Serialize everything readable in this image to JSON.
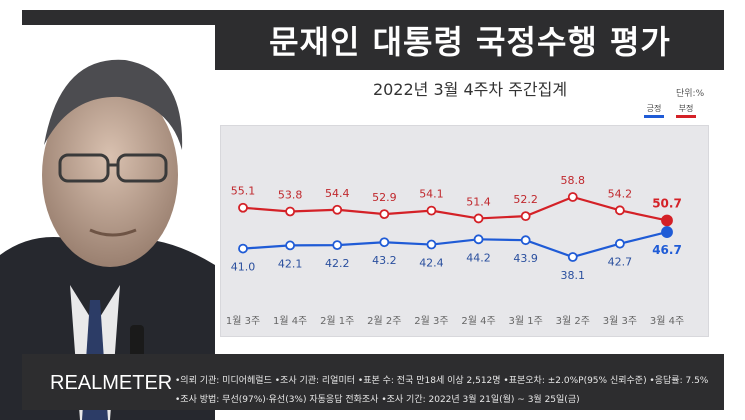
{
  "header": {
    "title": "문재인 대통령 국정수행 평가",
    "subtitle": "2022년 3월 4주차 주간집계",
    "unit": "단위:%"
  },
  "legend": {
    "positive_label": "긍정",
    "negative_label": "부정"
  },
  "footer": {
    "logo": "REALMETER",
    "line1": "•의뢰 기관: 미디어헤럴드 •조사 기관: 리얼미터 •표본 수: 전국 만18세 이상 2,512명 •표본오차: ±2.0%P(95% 신뢰수준) •응답률: 7.5%",
    "line2": "•조사 방법: 무선(97%)·유선(3%) 자동응답 전화조사 •조사 기간: 2022년 3월 21일(월) ~ 3월 25일(금)"
  },
  "colors": {
    "positive": "#1f5bd6",
    "negative": "#d42127",
    "header_bg": "#2d2d2f",
    "plot_bg": "#e7e7ea"
  },
  "chart_data": {
    "type": "line",
    "title": "문재인 대통령 국정수행 평가",
    "subtitle": "2022년 3월 4주차 주간집계",
    "categories": [
      "1월 3주",
      "1월 4주",
      "2월 1주",
      "2월 2주",
      "2월 3주",
      "2월 4주",
      "3월 1주",
      "3월 2주",
      "3월 3주",
      "3월 4주"
    ],
    "series": [
      {
        "name": "부정",
        "color": "#d42127",
        "values": [
          55.1,
          53.8,
          54.4,
          52.9,
          54.1,
          51.4,
          52.2,
          58.8,
          54.2,
          50.7
        ]
      },
      {
        "name": "긍정",
        "color": "#1f5bd6",
        "values": [
          41.0,
          42.1,
          42.2,
          43.2,
          42.4,
          44.2,
          43.9,
          38.1,
          42.7,
          46.7
        ]
      }
    ],
    "grid": false,
    "legend": "top-right"
  }
}
